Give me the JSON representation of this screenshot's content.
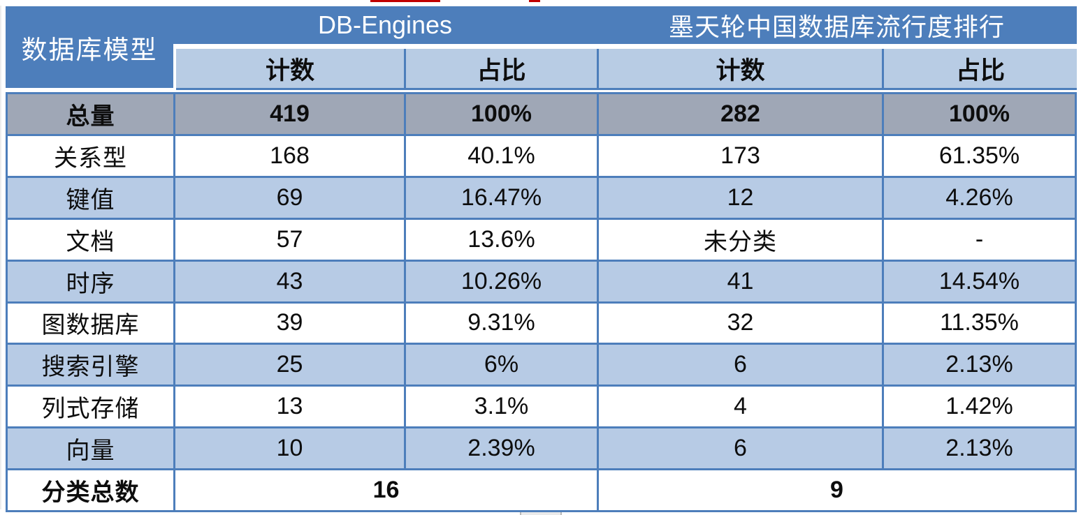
{
  "table": {
    "corner_header": "数据库模型",
    "col_groups": [
      {
        "title": "DB-Engines"
      },
      {
        "title": "墨天轮中国数据库流行度排行"
      }
    ],
    "sub_headers": [
      "计数",
      "占比",
      "计数",
      "占比"
    ],
    "rows": [
      {
        "model": "总量",
        "dbengines_count": "419",
        "dbengines_share": "100%",
        "modb_count": "282",
        "modb_share": "100%"
      },
      {
        "model": "关系型",
        "dbengines_count": "168",
        "dbengines_share": "40.1%",
        "modb_count": "173",
        "modb_share": "61.35%"
      },
      {
        "model": "键值",
        "dbengines_count": "69",
        "dbengines_share": "16.47%",
        "modb_count": "12",
        "modb_share": "4.26%"
      },
      {
        "model": "文档",
        "dbengines_count": "57",
        "dbengines_share": "13.6%",
        "modb_count": "未分类",
        "modb_share": "-"
      },
      {
        "model": "时序",
        "dbengines_count": "43",
        "dbengines_share": "10.26%",
        "modb_count": "41",
        "modb_share": "14.54%"
      },
      {
        "model": "图数据库",
        "dbengines_count": "39",
        "dbengines_share": "9.31%",
        "modb_count": "32",
        "modb_share": "11.35%"
      },
      {
        "model": "搜索引擎",
        "dbengines_count": "25",
        "dbengines_share": "6%",
        "modb_count": "6",
        "modb_share": "2.13%"
      },
      {
        "model": "列式存储",
        "dbengines_count": "13",
        "dbengines_share": "3.1%",
        "modb_count": "4",
        "modb_share": "1.42%"
      },
      {
        "model": "向量",
        "dbengines_count": "10",
        "dbengines_share": "2.39%",
        "modb_count": "6",
        "modb_share": "2.13%"
      }
    ],
    "totals": {
      "label": "分类总数",
      "dbengines_total": "16",
      "modb_total": "9"
    },
    "colors": {
      "header_blue": "#4D7EBB",
      "light_blue_band": "#B7CBE5",
      "subheader_blue": "#B8CCE4",
      "total_row_gray": "#9FA7B6",
      "border_blue": "#4D7EBB",
      "artifact_red": "#C00000"
    }
  },
  "chart_data": {
    "type": "table",
    "title": "数据库模型 — DB-Engines vs 墨天轮中国数据库流行度排行",
    "columns": [
      "数据库模型",
      "DB-Engines 计数",
      "DB-Engines 占比",
      "墨天轮 计数",
      "墨天轮 占比"
    ],
    "rows": [
      [
        "总量",
        "419",
        "100%",
        "282",
        "100%"
      ],
      [
        "关系型",
        "168",
        "40.1%",
        "173",
        "61.35%"
      ],
      [
        "键值",
        "69",
        "16.47%",
        "12",
        "4.26%"
      ],
      [
        "文档",
        "57",
        "13.6%",
        "未分类",
        "-"
      ],
      [
        "时序",
        "43",
        "10.26%",
        "41",
        "14.54%"
      ],
      [
        "图数据库",
        "39",
        "9.31%",
        "32",
        "11.35%"
      ],
      [
        "搜索引擎",
        "25",
        "6%",
        "6",
        "2.13%"
      ],
      [
        "列式存储",
        "13",
        "3.1%",
        "4",
        "1.42%"
      ],
      [
        "向量",
        "10",
        "2.39%",
        "6",
        "2.13%"
      ],
      [
        "分类总数",
        "16",
        "",
        "9",
        ""
      ]
    ]
  }
}
